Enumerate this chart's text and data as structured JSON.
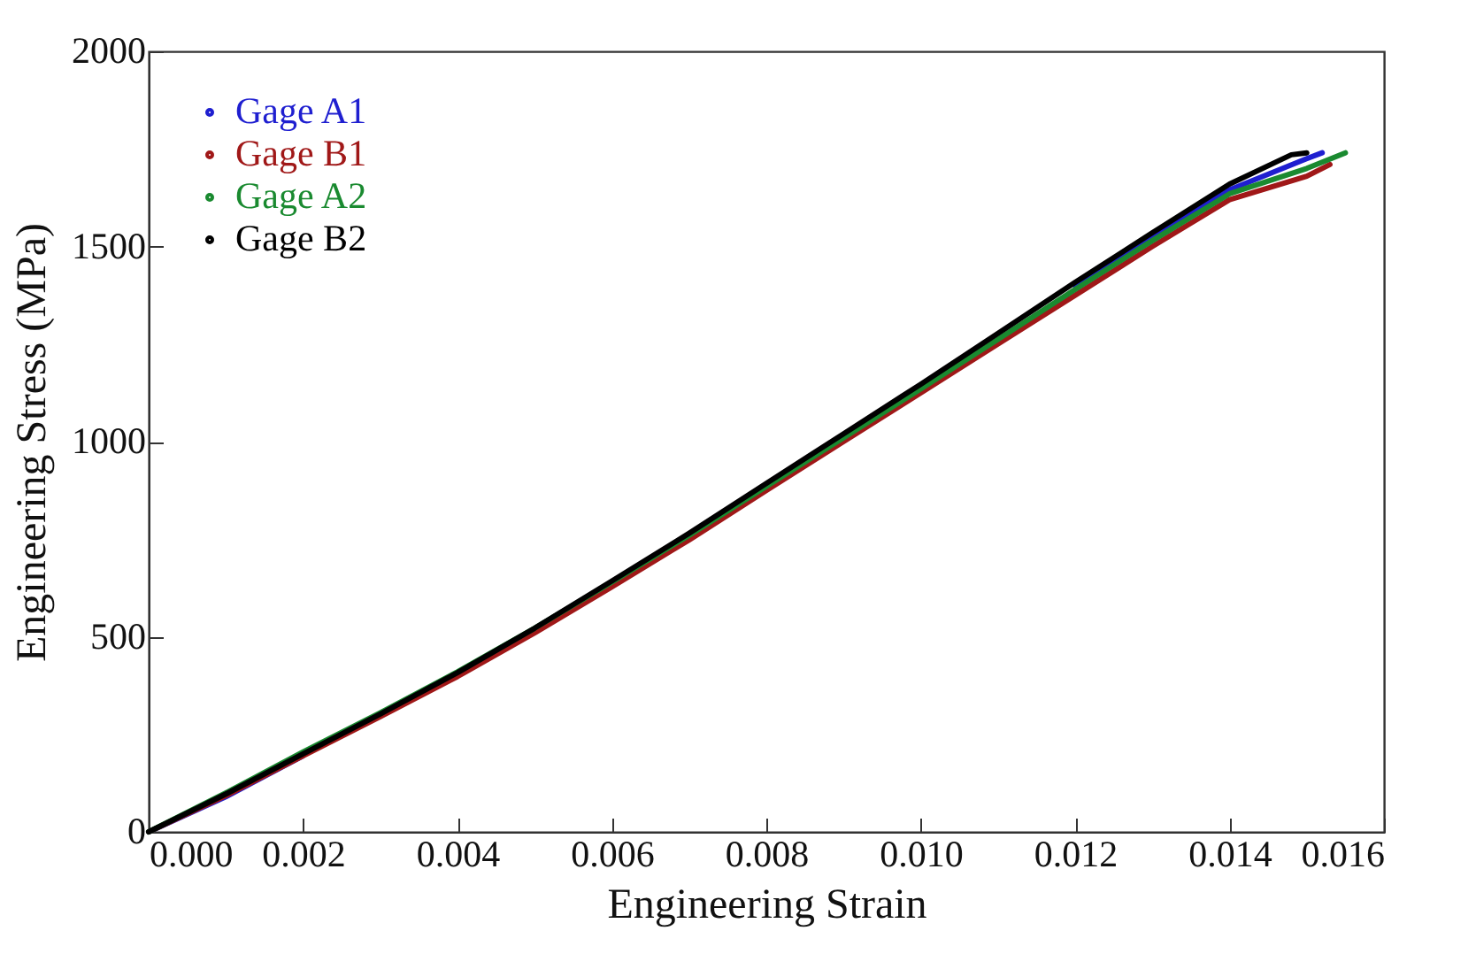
{
  "chart_data": {
    "type": "line",
    "xlabel": "Engineering Strain",
    "ylabel": "Engineering Stress (MPa)",
    "xlim": [
      0,
      0.016
    ],
    "ylim": [
      0,
      2000
    ],
    "xticks": [
      {
        "value": 0,
        "label": "0.000"
      },
      {
        "value": 0.002,
        "label": "0.002"
      },
      {
        "value": 0.004,
        "label": "0.004"
      },
      {
        "value": 0.006,
        "label": "0.006"
      },
      {
        "value": 0.008,
        "label": "0.008"
      },
      {
        "value": 0.01,
        "label": "0.010"
      },
      {
        "value": 0.012,
        "label": "0.012"
      },
      {
        "value": 0.014,
        "label": "0.014"
      },
      {
        "value": 0.016,
        "label": "0.016"
      }
    ],
    "yticks": [
      0,
      500,
      1000,
      1500,
      2000
    ],
    "grid": false,
    "legend": "top left",
    "series": [
      {
        "name": "Gage A1",
        "color": "#1f1fd0",
        "x": [
          0,
          0.001,
          0.002,
          0.003,
          0.004,
          0.005,
          0.006,
          0.007,
          0.008,
          0.009,
          0.01,
          0.011,
          0.012,
          0.013,
          0.014,
          0.015,
          0.0152
        ],
        "values": [
          0,
          90,
          195,
          null,
          null,
          null,
          null,
          null,
          null,
          null,
          null,
          null,
          1400,
          1525,
          1645,
          1725,
          1740
        ]
      },
      {
        "name": "Gage B1",
        "color": "#a01818",
        "x": [
          0,
          0.001,
          0.002,
          0.003,
          0.004,
          0.005,
          0.006,
          0.007,
          0.008,
          0.009,
          0.01,
          0.011,
          0.012,
          0.013,
          0.014,
          0.015,
          0.0153
        ],
        "values": [
          0,
          93,
          195,
          295,
          398,
          510,
          628,
          748,
          875,
          1000,
          1125,
          1250,
          1375,
          1500,
          1620,
          1680,
          1710
        ]
      },
      {
        "name": "Gage A2",
        "color": "#1a8a30",
        "x": [
          0,
          0.001,
          0.002,
          0.003,
          0.004,
          0.005,
          0.006,
          0.007,
          0.008,
          0.009,
          0.01,
          0.011,
          0.012,
          0.013,
          0.014,
          0.015,
          0.0155
        ],
        "values": [
          0,
          100,
          205,
          305,
          410,
          522,
          640,
          760,
          885,
          1010,
          1135,
          1262,
          1390,
          1515,
          1635,
          1700,
          1740
        ]
      },
      {
        "name": "Gage B2",
        "color": "#000000",
        "x": [
          0,
          0.001,
          0.002,
          0.003,
          0.004,
          0.005,
          0.006,
          0.007,
          0.008,
          0.009,
          0.01,
          0.011,
          0.012,
          0.013,
          0.014,
          0.0148,
          0.015
        ],
        "values": [
          0,
          97,
          200,
          302,
          408,
          522,
          643,
          765,
          893,
          1020,
          1147,
          1277,
          1408,
          1535,
          1660,
          1735,
          1740
        ]
      }
    ]
  }
}
